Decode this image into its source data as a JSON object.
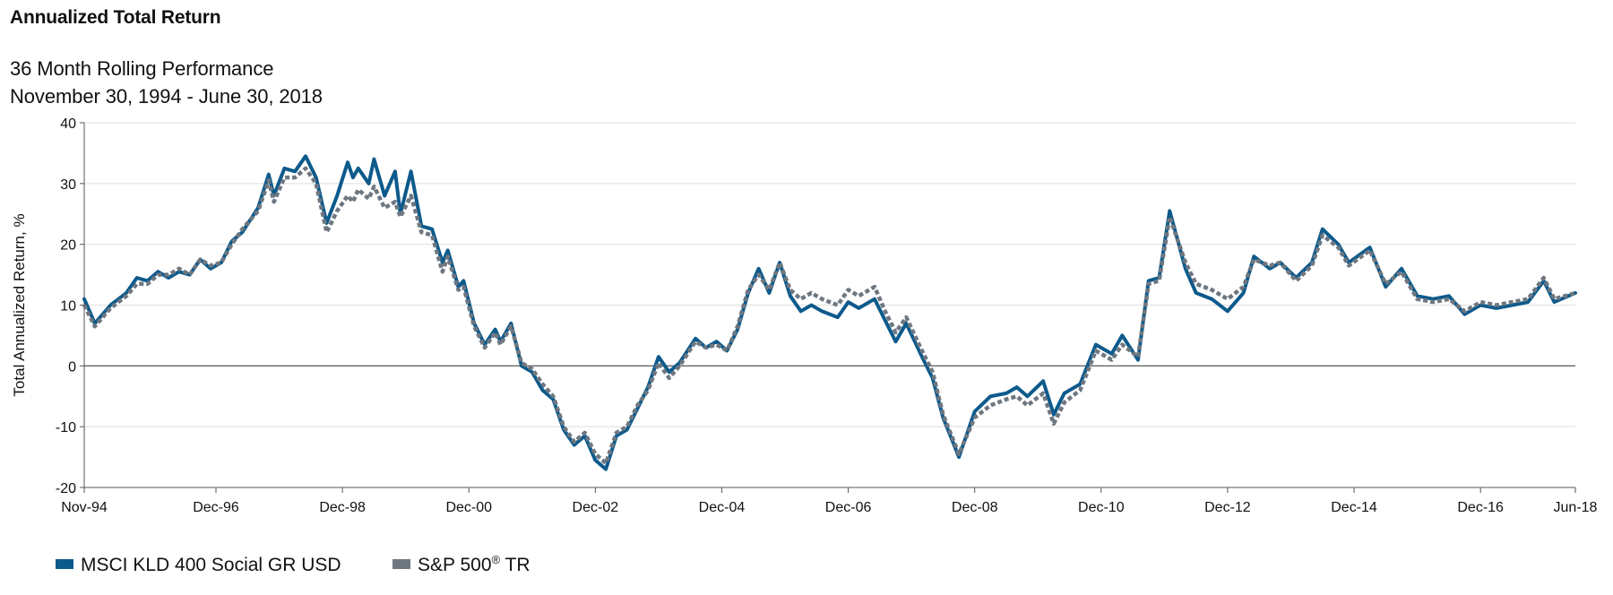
{
  "colors": {
    "series_msci": "#0d5a8c",
    "series_sp": "#6e7780",
    "gridline": "#dedede",
    "zero_line": "#666666",
    "axis": "#555555"
  },
  "chart_data": {
    "type": "line",
    "title": "Annualized Total Return",
    "subtitle_lines": [
      "36 Month Rolling Performance",
      "November 30, 1994 - June 30, 2018"
    ],
    "ylabel": "Total Annualized Return, %",
    "xlabel": "",
    "ylim": [
      -20,
      40
    ],
    "yticks": [
      -20,
      -10,
      0,
      10,
      20,
      30,
      40
    ],
    "xlim": [
      "1994-11",
      "2018-06"
    ],
    "xticks": [
      {
        "date": "1994-11",
        "label": "Nov-94"
      },
      {
        "date": "1996-12",
        "label": "Dec-96"
      },
      {
        "date": "1998-12",
        "label": "Dec-98"
      },
      {
        "date": "2000-12",
        "label": "Dec-00"
      },
      {
        "date": "2002-12",
        "label": "Dec-02"
      },
      {
        "date": "2004-12",
        "label": "Dec-04"
      },
      {
        "date": "2006-12",
        "label": "Dec-06"
      },
      {
        "date": "2008-12",
        "label": "Dec-08"
      },
      {
        "date": "2010-12",
        "label": "Dec-10"
      },
      {
        "date": "2012-12",
        "label": "Dec-12"
      },
      {
        "date": "2014-12",
        "label": "Dec-14"
      },
      {
        "date": "2016-12",
        "label": "Dec-16"
      },
      {
        "date": "2018-06",
        "label": "Jun-18"
      }
    ],
    "grid": true,
    "legend_position": "bottom-left",
    "series": [
      {
        "name": "MSCI KLD 400 Social GR USD",
        "style": "solid",
        "points": [
          [
            "1994-11",
            11
          ],
          [
            "1995-01",
            7
          ],
          [
            "1995-04",
            10
          ],
          [
            "1995-07",
            12
          ],
          [
            "1995-09",
            14.5
          ],
          [
            "1995-11",
            14
          ],
          [
            "1996-01",
            15.5
          ],
          [
            "1996-03",
            14.5
          ],
          [
            "1996-05",
            15.5
          ],
          [
            "1996-07",
            15
          ],
          [
            "1996-09",
            17.5
          ],
          [
            "1996-11",
            16
          ],
          [
            "1997-01",
            17
          ],
          [
            "1997-03",
            20.5
          ],
          [
            "1997-05",
            22
          ],
          [
            "1997-08",
            26
          ],
          [
            "1997-10",
            31.5
          ],
          [
            "1997-11",
            28
          ],
          [
            "1998-01",
            32.5
          ],
          [
            "1998-03",
            32
          ],
          [
            "1998-05",
            34.5
          ],
          [
            "1998-07",
            31
          ],
          [
            "1998-09",
            23.5
          ],
          [
            "1998-11",
            28
          ],
          [
            "1999-01",
            33.5
          ],
          [
            "1999-02",
            31
          ],
          [
            "1999-03",
            32.5
          ],
          [
            "1999-05",
            30
          ],
          [
            "1999-06",
            34
          ],
          [
            "1999-08",
            28
          ],
          [
            "1999-10",
            32
          ],
          [
            "1999-11",
            25
          ],
          [
            "2000-01",
            32
          ],
          [
            "2000-03",
            23
          ],
          [
            "2000-05",
            22.5
          ],
          [
            "2000-07",
            17
          ],
          [
            "2000-08",
            19
          ],
          [
            "2000-10",
            13
          ],
          [
            "2000-11",
            14
          ],
          [
            "2001-01",
            7
          ],
          [
            "2001-03",
            3.5
          ],
          [
            "2001-05",
            6
          ],
          [
            "2001-06",
            4
          ],
          [
            "2001-08",
            7
          ],
          [
            "2001-10",
            0
          ],
          [
            "2001-12",
            -1
          ],
          [
            "2002-02",
            -4
          ],
          [
            "2002-04",
            -5.5
          ],
          [
            "2002-06",
            -10.5
          ],
          [
            "2002-08",
            -13
          ],
          [
            "2002-10",
            -11.5
          ],
          [
            "2002-12",
            -15.5
          ],
          [
            "2003-02",
            -17
          ],
          [
            "2003-04",
            -11.5
          ],
          [
            "2003-06",
            -10.5
          ],
          [
            "2003-08",
            -7
          ],
          [
            "2003-10",
            -3.5
          ],
          [
            "2003-12",
            1.5
          ],
          [
            "2004-02",
            -1
          ],
          [
            "2004-04",
            0.5
          ],
          [
            "2004-07",
            4.5
          ],
          [
            "2004-09",
            3
          ],
          [
            "2004-11",
            4
          ],
          [
            "2005-01",
            2.5
          ],
          [
            "2005-03",
            6
          ],
          [
            "2005-05",
            12
          ],
          [
            "2005-07",
            16
          ],
          [
            "2005-09",
            12
          ],
          [
            "2005-11",
            17
          ],
          [
            "2006-01",
            11.5
          ],
          [
            "2006-03",
            9
          ],
          [
            "2006-05",
            10
          ],
          [
            "2006-07",
            9
          ],
          [
            "2006-10",
            8
          ],
          [
            "2006-12",
            10.5
          ],
          [
            "2007-02",
            9.5
          ],
          [
            "2007-05",
            11
          ],
          [
            "2007-07",
            7.5
          ],
          [
            "2007-09",
            4
          ],
          [
            "2007-11",
            7
          ],
          [
            "2008-02",
            1.5
          ],
          [
            "2008-04",
            -2
          ],
          [
            "2008-06",
            -8.5
          ],
          [
            "2008-09",
            -15
          ],
          [
            "2008-12",
            -7.5
          ],
          [
            "2009-03",
            -5
          ],
          [
            "2009-06",
            -4.5
          ],
          [
            "2009-08",
            -3.5
          ],
          [
            "2009-10",
            -5
          ],
          [
            "2010-01",
            -2.5
          ],
          [
            "2010-03",
            -8
          ],
          [
            "2010-05",
            -4.5
          ],
          [
            "2010-08",
            -3
          ],
          [
            "2010-11",
            3.5
          ],
          [
            "2011-02",
            2
          ],
          [
            "2011-04",
            5
          ],
          [
            "2011-07",
            1
          ],
          [
            "2011-09",
            14
          ],
          [
            "2011-11",
            14.5
          ],
          [
            "2012-01",
            25.5
          ],
          [
            "2012-04",
            16
          ],
          [
            "2012-06",
            12
          ],
          [
            "2012-09",
            11
          ],
          [
            "2012-12",
            9
          ],
          [
            "2013-03",
            12
          ],
          [
            "2013-05",
            18
          ],
          [
            "2013-08",
            16
          ],
          [
            "2013-10",
            17
          ],
          [
            "2014-01",
            14.5
          ],
          [
            "2014-04",
            17
          ],
          [
            "2014-06",
            22.5
          ],
          [
            "2014-09",
            20
          ],
          [
            "2014-11",
            17
          ],
          [
            "2015-03",
            19.5
          ],
          [
            "2015-06",
            13
          ],
          [
            "2015-09",
            16
          ],
          [
            "2015-12",
            11.5
          ],
          [
            "2016-03",
            11
          ],
          [
            "2016-06",
            11.5
          ],
          [
            "2016-09",
            8.5
          ],
          [
            "2016-12",
            10
          ],
          [
            "2017-03",
            9.5
          ],
          [
            "2017-06",
            10
          ],
          [
            "2017-09",
            10.5
          ],
          [
            "2017-12",
            14
          ],
          [
            "2018-02",
            10.5
          ],
          [
            "2018-06",
            12
          ]
        ]
      },
      {
        "name": "S&P 500® TR",
        "style": "dashed",
        "points": [
          [
            "1994-11",
            10
          ],
          [
            "1995-01",
            6.5
          ],
          [
            "1995-04",
            9.5
          ],
          [
            "1995-07",
            11.5
          ],
          [
            "1995-09",
            13.5
          ],
          [
            "1995-11",
            13.5
          ],
          [
            "1996-01",
            15
          ],
          [
            "1996-03",
            15
          ],
          [
            "1996-05",
            16
          ],
          [
            "1996-07",
            15
          ],
          [
            "1996-09",
            17.5
          ],
          [
            "1996-11",
            16.5
          ],
          [
            "1997-01",
            17
          ],
          [
            "1997-03",
            20
          ],
          [
            "1997-05",
            22.5
          ],
          [
            "1997-08",
            25.5
          ],
          [
            "1997-10",
            30.5
          ],
          [
            "1997-11",
            27
          ],
          [
            "1998-01",
            31
          ],
          [
            "1998-03",
            31
          ],
          [
            "1998-05",
            32.5
          ],
          [
            "1998-07",
            30
          ],
          [
            "1998-09",
            22
          ],
          [
            "1998-11",
            25.5
          ],
          [
            "1999-01",
            28
          ],
          [
            "1999-02",
            27
          ],
          [
            "1999-03",
            29
          ],
          [
            "1999-05",
            27.5
          ],
          [
            "1999-06",
            29.5
          ],
          [
            "1999-08",
            26
          ],
          [
            "1999-10",
            27
          ],
          [
            "1999-11",
            24.5
          ],
          [
            "2000-01",
            28
          ],
          [
            "2000-03",
            22
          ],
          [
            "2000-05",
            21.5
          ],
          [
            "2000-07",
            15.5
          ],
          [
            "2000-08",
            18
          ],
          [
            "2000-10",
            12.5
          ],
          [
            "2000-11",
            13
          ],
          [
            "2001-01",
            6.5
          ],
          [
            "2001-03",
            3
          ],
          [
            "2001-05",
            5.5
          ],
          [
            "2001-06",
            3.5
          ],
          [
            "2001-08",
            6.5
          ],
          [
            "2001-10",
            0.5
          ],
          [
            "2001-12",
            -0.5
          ],
          [
            "2002-02",
            -3
          ],
          [
            "2002-04",
            -5
          ],
          [
            "2002-06",
            -10
          ],
          [
            "2002-08",
            -12.5
          ],
          [
            "2002-10",
            -11
          ],
          [
            "2002-12",
            -14.5
          ],
          [
            "2003-02",
            -16
          ],
          [
            "2003-04",
            -11
          ],
          [
            "2003-06",
            -10
          ],
          [
            "2003-08",
            -6.5
          ],
          [
            "2003-10",
            -4
          ],
          [
            "2003-12",
            0.5
          ],
          [
            "2004-02",
            -2
          ],
          [
            "2004-04",
            0
          ],
          [
            "2004-07",
            4
          ],
          [
            "2004-09",
            3
          ],
          [
            "2004-11",
            3.5
          ],
          [
            "2005-01",
            2.5
          ],
          [
            "2005-03",
            6.5
          ],
          [
            "2005-05",
            12.5
          ],
          [
            "2005-07",
            15
          ],
          [
            "2005-09",
            12.5
          ],
          [
            "2005-11",
            17
          ],
          [
            "2006-01",
            12.5
          ],
          [
            "2006-03",
            11
          ],
          [
            "2006-05",
            12
          ],
          [
            "2006-07",
            11
          ],
          [
            "2006-10",
            10
          ],
          [
            "2006-12",
            12.5
          ],
          [
            "2007-02",
            11.5
          ],
          [
            "2007-05",
            13
          ],
          [
            "2007-07",
            9
          ],
          [
            "2007-09",
            5.5
          ],
          [
            "2007-11",
            8
          ],
          [
            "2008-02",
            2.5
          ],
          [
            "2008-04",
            -1
          ],
          [
            "2008-06",
            -8
          ],
          [
            "2008-09",
            -14.5
          ],
          [
            "2008-12",
            -8.5
          ],
          [
            "2009-03",
            -6.5
          ],
          [
            "2009-06",
            -5.5
          ],
          [
            "2009-08",
            -5
          ],
          [
            "2009-10",
            -6.5
          ],
          [
            "2010-01",
            -4.5
          ],
          [
            "2010-03",
            -9.5
          ],
          [
            "2010-05",
            -6
          ],
          [
            "2010-08",
            -4
          ],
          [
            "2010-11",
            2.5
          ],
          [
            "2011-02",
            1
          ],
          [
            "2011-04",
            3.5
          ],
          [
            "2011-07",
            1.5
          ],
          [
            "2011-09",
            13.5
          ],
          [
            "2011-11",
            14
          ],
          [
            "2012-01",
            24.5
          ],
          [
            "2012-04",
            17
          ],
          [
            "2012-06",
            13.5
          ],
          [
            "2012-09",
            12.5
          ],
          [
            "2012-12",
            11
          ],
          [
            "2013-03",
            13
          ],
          [
            "2013-05",
            17.5
          ],
          [
            "2013-08",
            16.5
          ],
          [
            "2013-10",
            17
          ],
          [
            "2014-01",
            14
          ],
          [
            "2014-04",
            16.5
          ],
          [
            "2014-06",
            21.5
          ],
          [
            "2014-09",
            19.5
          ],
          [
            "2014-11",
            16.5
          ],
          [
            "2015-03",
            19
          ],
          [
            "2015-06",
            13.5
          ],
          [
            "2015-09",
            15.5
          ],
          [
            "2015-12",
            11
          ],
          [
            "2016-03",
            10.5
          ],
          [
            "2016-06",
            11
          ],
          [
            "2016-09",
            9
          ],
          [
            "2016-12",
            10.5
          ],
          [
            "2017-03",
            10
          ],
          [
            "2017-06",
            10.5
          ],
          [
            "2017-09",
            11
          ],
          [
            "2017-12",
            14.5
          ],
          [
            "2018-02",
            11
          ],
          [
            "2018-06",
            12
          ]
        ]
      }
    ],
    "legend": [
      {
        "label": "MSCI KLD 400 Social GR USD",
        "color_key": "series_msci"
      },
      {
        "label_main": "S&P 500",
        "label_sup": "®",
        "label_tail": " TR",
        "color_key": "series_sp"
      }
    ]
  }
}
